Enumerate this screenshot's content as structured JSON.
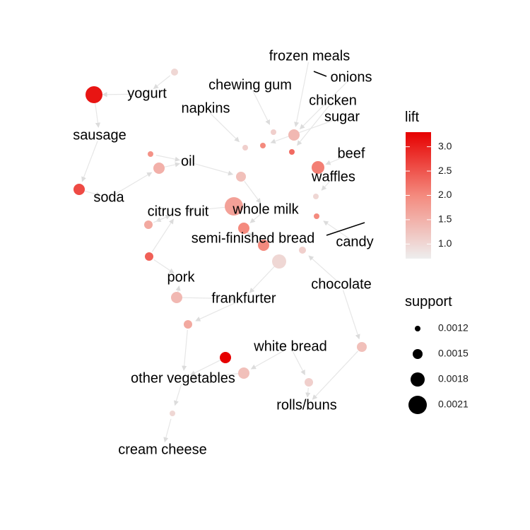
{
  "chart_data": {
    "type": "network",
    "title": "",
    "color_scale": {
      "low": "#EEEEEE",
      "high": "#E60000"
    },
    "legend_lift": {
      "title": "lift",
      "min": 0.7,
      "max": 3.3,
      "ticks": [
        "1.0",
        "1.5",
        "2.0",
        "2.5",
        "3.0"
      ],
      "tick_values": [
        1.0,
        1.5,
        2.0,
        2.5,
        3.0
      ]
    },
    "legend_support": {
      "title": "support",
      "labels": [
        "0.0012",
        "0.0015",
        "0.0018",
        "0.0021"
      ],
      "values": [
        0.0012,
        0.0015,
        0.0018,
        0.0021
      ]
    },
    "items": [
      {
        "id": "frozen-meals",
        "label": "frozen meals"
      },
      {
        "id": "onions",
        "label": "onions"
      },
      {
        "id": "chewing-gum",
        "label": "chewing gum"
      },
      {
        "id": "chicken",
        "label": "chicken"
      },
      {
        "id": "yogurt",
        "label": "yogurt"
      },
      {
        "id": "napkins",
        "label": "napkins"
      },
      {
        "id": "sugar",
        "label": "sugar"
      },
      {
        "id": "sausage",
        "label": "sausage"
      },
      {
        "id": "beef",
        "label": "beef"
      },
      {
        "id": "oil",
        "label": "oil"
      },
      {
        "id": "waffles",
        "label": "waffles"
      },
      {
        "id": "soda",
        "label": "soda"
      },
      {
        "id": "citrus-fruit",
        "label": "citrus fruit"
      },
      {
        "id": "whole-milk",
        "label": "whole milk"
      },
      {
        "id": "semi-finished-bread",
        "label": "semi-finished bread"
      },
      {
        "id": "candy",
        "label": "candy"
      },
      {
        "id": "pork",
        "label": "pork"
      },
      {
        "id": "chocolate",
        "label": "chocolate"
      },
      {
        "id": "frankfurter",
        "label": "frankfurter"
      },
      {
        "id": "white-bread",
        "label": "white bread"
      },
      {
        "id": "other-vegetables",
        "label": "other vegetables"
      },
      {
        "id": "rolls-buns",
        "label": "rolls/buns"
      },
      {
        "id": "cream-cheese",
        "label": "cream cheese"
      }
    ],
    "rules": [
      {
        "id": "r1",
        "lift": 1.0,
        "support": 0.0013
      },
      {
        "id": "r2",
        "lift": 3.1,
        "support": 0.002
      },
      {
        "id": "r3",
        "lift": 2.6,
        "support": 0.0016
      },
      {
        "id": "r4",
        "lift": 1.5,
        "support": 0.0016
      },
      {
        "id": "r5",
        "lift": 1.6,
        "support": 0.0014
      },
      {
        "id": "r6",
        "lift": 1.4,
        "support": 0.0016
      },
      {
        "id": "r7",
        "lift": 2.0,
        "support": 0.0016
      },
      {
        "id": "r8",
        "lift": 1.3,
        "support": 0.0015
      },
      {
        "id": "r9",
        "lift": 1.4,
        "support": 0.0016
      },
      {
        "id": "r10",
        "lift": 1.0,
        "support": 0.0018
      },
      {
        "id": "r11",
        "lift": 1.7,
        "support": 0.0021
      },
      {
        "id": "r12",
        "lift": 2.1,
        "support": 0.0017
      },
      {
        "id": "r13",
        "lift": 1.6,
        "support": 0.0014
      },
      {
        "id": "r14",
        "lift": 2.4,
        "support": 0.0014
      },
      {
        "id": "r15",
        "lift": 2.0,
        "support": 0.0016
      },
      {
        "id": "r16",
        "lift": 3.3,
        "support": 0.0016
      },
      {
        "id": "r17",
        "lift": 1.3,
        "support": 0.0016
      },
      {
        "id": "r18",
        "lift": 1.3,
        "support": 0.0015
      },
      {
        "id": "r19",
        "lift": 1.1,
        "support": 0.0014
      },
      {
        "id": "r20",
        "lift": 1.0,
        "support": 0.0012
      },
      {
        "id": "r21",
        "lift": 1.1,
        "support": 0.0013
      },
      {
        "id": "r22",
        "lift": 2.3,
        "support": 0.0012
      },
      {
        "id": "r23",
        "lift": 1.1,
        "support": 0.0012
      },
      {
        "id": "r24",
        "lift": 1.9,
        "support": 0.0012
      },
      {
        "id": "r25",
        "lift": 2.0,
        "support": 0.0012
      },
      {
        "id": "r26",
        "lift": 2.0,
        "support": 0.0012
      },
      {
        "id": "r27",
        "lift": 1.1,
        "support": 0.0012
      },
      {
        "id": "r28",
        "lift": 1.0,
        "support": 0.0012
      }
    ]
  }
}
